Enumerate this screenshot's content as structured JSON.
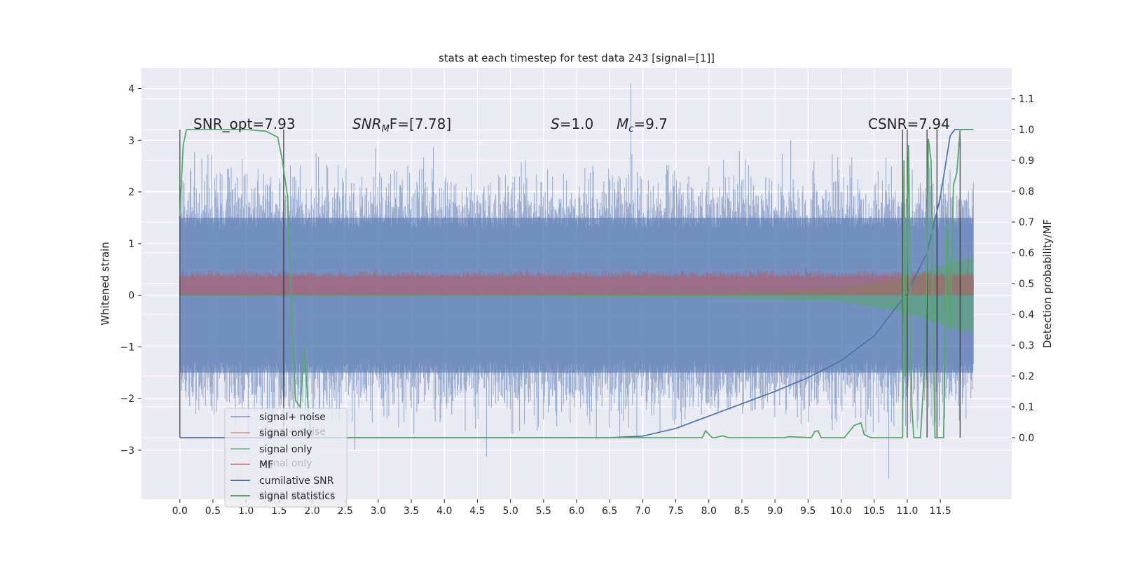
{
  "chart_data": {
    "type": "line",
    "title": "stats at each timestep for test data 243 [signal=[1]]",
    "xlabel": "",
    "ylabel_left": "Whitened strain",
    "ylabel_right": "Detection probability/MF",
    "xlim": [
      -0.58,
      12.58
    ],
    "ylim_left": [
      -3.95,
      4.4
    ],
    "ylim_right": [
      -0.2,
      1.2
    ],
    "x_ticks": [
      "0.0",
      "0.5",
      "1.0",
      "1.5",
      "2.0",
      "2.5",
      "3.0",
      "3.5",
      "4.0",
      "4.5",
      "5.0",
      "5.5",
      "6.0",
      "6.5",
      "7.0",
      "7.5",
      "8.0",
      "8.5",
      "9.0",
      "9.5",
      "10.0",
      "10.5",
      "11.0",
      "11.5"
    ],
    "y_ticks_left": [
      "4",
      "3",
      "2",
      "1",
      "0",
      "−1",
      "−2",
      "−3"
    ],
    "y_ticks_right": [
      "1.1",
      "1.0",
      "0.9",
      "0.8",
      "0.7",
      "0.6",
      "0.5",
      "0.4",
      "0.3",
      "0.2",
      "0.1",
      "0.0"
    ],
    "grid": true,
    "legend_position": "lower-left",
    "colors": {
      "signal_noise": "#4c72b0",
      "signal_only_orange": "#dd8452",
      "signal_only_green": "#55a868",
      "mf": "#c44e52",
      "cumulative_snr": "#4c72b0",
      "signal_statistics": "#55a868",
      "vlines": "#333333",
      "background": "#eaeaf2"
    },
    "annotations": {
      "snr_opt": "SNR_opt=7.93",
      "snr_mf_prefix": "SNR",
      "snr_mf_sub": "M",
      "snr_mf_suffix": "F=[7.78]",
      "s_prefix": "S",
      "s_suffix": "=1.0",
      "mc_prefix": "M",
      "mc_sub": "c",
      "mc_suffix": "=9.7",
      "csnr": "CSNR=7.94"
    },
    "legend": [
      "signal+ noise",
      "signal only",
      "signal only",
      "MF",
      "cumilative SNR",
      "signal statistics"
    ],
    "legend_ghost_text": [
      "signal+ noise",
      "signal only",
      "signal statistics"
    ],
    "series": [
      {
        "name": "signal+ noise",
        "axis": "left",
        "style": "noise band",
        "x_range": [
          0.0,
          12.0
        ],
        "typical_range": [
          -1.5,
          1.5
        ],
        "peak_max": 4.1,
        "peak_min": -3.55
      },
      {
        "name": "MF",
        "axis": "left",
        "style": "noise band",
        "x_range": [
          0.0,
          12.0
        ],
        "typical_range": [
          0.0,
          0.35
        ],
        "end_spike": 0.95
      },
      {
        "name": "signal only",
        "axis": "left",
        "style": "chirp",
        "x_range": [
          0.0,
          12.0
        ],
        "envelope": [
          [
            0,
            0.02
          ],
          [
            8,
            0.05
          ],
          [
            10,
            0.12
          ],
          [
            11,
            0.35
          ],
          [
            11.5,
            0.55
          ],
          [
            11.8,
            0.7
          ]
        ]
      },
      {
        "name": "cumilative SNR",
        "axis": "right",
        "x": [
          0.0,
          6.5,
          7.0,
          7.5,
          8.0,
          8.5,
          9.0,
          9.5,
          10.0,
          10.5,
          11.0,
          11.3,
          11.5,
          11.65,
          11.72,
          12.0
        ],
        "y": [
          0.0,
          0.0,
          0.005,
          0.03,
          0.07,
          0.11,
          0.15,
          0.195,
          0.25,
          0.33,
          0.47,
          0.6,
          0.78,
          0.98,
          1.0,
          1.0
        ]
      },
      {
        "name": "signal statistics",
        "axis": "right",
        "x": [
          0.0,
          0.05,
          0.1,
          0.2,
          0.5,
          1.0,
          1.3,
          1.48,
          1.55,
          1.63,
          1.7,
          1.75,
          1.82,
          1.88,
          1.95,
          2.0,
          2.1,
          7.9,
          7.95,
          8.05,
          8.1,
          8.2,
          8.3,
          9.15,
          9.2,
          9.55,
          9.6,
          9.65,
          9.7,
          9.75,
          10.05,
          10.2,
          10.3,
          10.35,
          10.45,
          10.93,
          10.95,
          10.97,
          11.02,
          11.07,
          11.1,
          11.2,
          11.28,
          11.32,
          11.36,
          11.42,
          11.45,
          11.5,
          11.55,
          11.6,
          11.65,
          11.7,
          11.75,
          11.8,
          11.85,
          11.9,
          12.0
        ],
        "y": [
          0.72,
          0.95,
          1.0,
          1.0,
          1.0,
          1.0,
          0.995,
          0.975,
          0.9,
          0.78,
          0.35,
          0.12,
          0.1,
          0.29,
          0.07,
          0.0,
          0.0,
          0.0,
          0.022,
          0.0,
          0.0,
          0.006,
          0.0,
          0.0,
          0.003,
          0.0,
          0.02,
          0.022,
          0.0,
          0.0,
          0.0,
          0.04,
          0.048,
          0.01,
          0.0,
          0.0,
          0.9,
          0.2,
          0.95,
          0.1,
          0.0,
          0.0,
          0.3,
          0.97,
          0.9,
          0.0,
          0.0,
          0.0,
          0.0,
          0.7,
          0.35,
          0.82,
          0.86,
          1.0,
          1.0,
          1.0,
          1.0
        ]
      }
    ],
    "vertical_lines_x": [
      0.0,
      1.57,
      10.93,
      11.0,
      11.3,
      11.45,
      11.8
    ]
  }
}
